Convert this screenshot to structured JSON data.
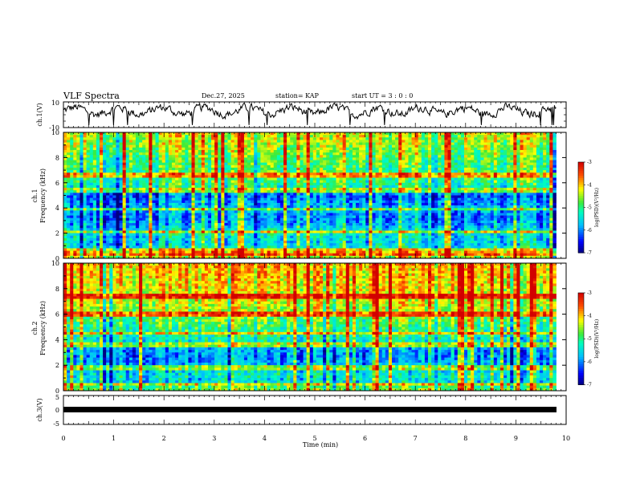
{
  "header": {
    "title": "VLF Spectra",
    "date": "Dec.27, 2025",
    "station": "station= KAP",
    "start": "start  UT =   3 : 0  : 0"
  },
  "chart_data": [
    {
      "type": "line",
      "name": "ch1-waveform",
      "ylabel": "ch.1(V)",
      "ylim": [
        -10,
        10
      ],
      "yticks": [
        "10",
        "-10"
      ],
      "xlim": [
        0,
        10
      ],
      "mean": 3.0,
      "amplitude": 4.5,
      "description_series": "noisy waveform oscillating about 3 V"
    },
    {
      "type": "heatmap",
      "name": "ch1-spectrogram",
      "ylabel": "ch.1",
      "ylabel2": "Frequency (kHz)",
      "ylim": [
        0,
        10
      ],
      "yticks": [
        "0",
        "2",
        "4",
        "6",
        "8",
        "10"
      ],
      "xlim": [
        0,
        9.8
      ],
      "colorbar": {
        "label": "log(PSD)(V²/Hz)",
        "range": [
          -7,
          -3
        ],
        "ticks": [
          "-3",
          "-4",
          "-5",
          "-6",
          "-7"
        ]
      },
      "profile_khz": [
        [
          0,
          -4.2
        ],
        [
          0.3,
          -4.6
        ],
        [
          0.6,
          -5.2
        ],
        [
          1.2,
          -5.6
        ],
        [
          2.0,
          -5.4
        ],
        [
          2.6,
          -5.8
        ],
        [
          3.2,
          -6.0
        ],
        [
          4.0,
          -5.8
        ],
        [
          5.0,
          -6.2
        ],
        [
          5.8,
          -5.1
        ],
        [
          6.6,
          -4.9
        ],
        [
          7.6,
          -4.9
        ],
        [
          8.6,
          -4.6
        ],
        [
          10,
          -4.3
        ]
      ],
      "bright_lines_khz": [
        0.3,
        0.6,
        2.1,
        3.9,
        5.4,
        6.6
      ]
    },
    {
      "type": "heatmap",
      "name": "ch2-spectrogram",
      "ylabel": "ch.2",
      "ylabel2": "Frequency (kHz)",
      "ylim": [
        0,
        10
      ],
      "yticks": [
        "0",
        "2",
        "4",
        "6",
        "8",
        "10"
      ],
      "xlim": [
        0,
        9.8
      ],
      "colorbar": {
        "label": "log(PSD)(V²/Hz)",
        "range": [
          -7,
          -3
        ],
        "ticks": [
          "-3",
          "-4",
          "-5",
          "-6",
          "-7"
        ]
      },
      "profile_khz": [
        [
          0,
          -4.5
        ],
        [
          0.3,
          -4.9
        ],
        [
          0.6,
          -5.6
        ],
        [
          1.2,
          -5.4
        ],
        [
          2.0,
          -5.8
        ],
        [
          2.6,
          -6.0
        ],
        [
          3.2,
          -5.9
        ],
        [
          4.0,
          -5.3
        ],
        [
          5.0,
          -5.0
        ],
        [
          5.8,
          -4.7
        ],
        [
          6.6,
          -4.4
        ],
        [
          7.6,
          -4.2
        ],
        [
          8.6,
          -4.1
        ],
        [
          10,
          -3.9
        ]
      ],
      "bright_lines_khz": [
        0.5,
        1.8,
        3.6,
        4.5,
        6.0,
        7.4
      ]
    },
    {
      "type": "line",
      "name": "ch3-waveform",
      "ylabel": "ch.3(V)",
      "ylim": [
        -5,
        5
      ],
      "yticks": [
        "5",
        "0",
        "-5"
      ],
      "xlim": [
        0,
        9.8
      ],
      "mean": 0.0
    }
  ],
  "xaxis": {
    "label": "Time  (min)",
    "ticks": [
      "0",
      "1",
      "2",
      "3",
      "4",
      "5",
      "6",
      "7",
      "8",
      "9",
      "10"
    ],
    "range": [
      0,
      10
    ]
  }
}
